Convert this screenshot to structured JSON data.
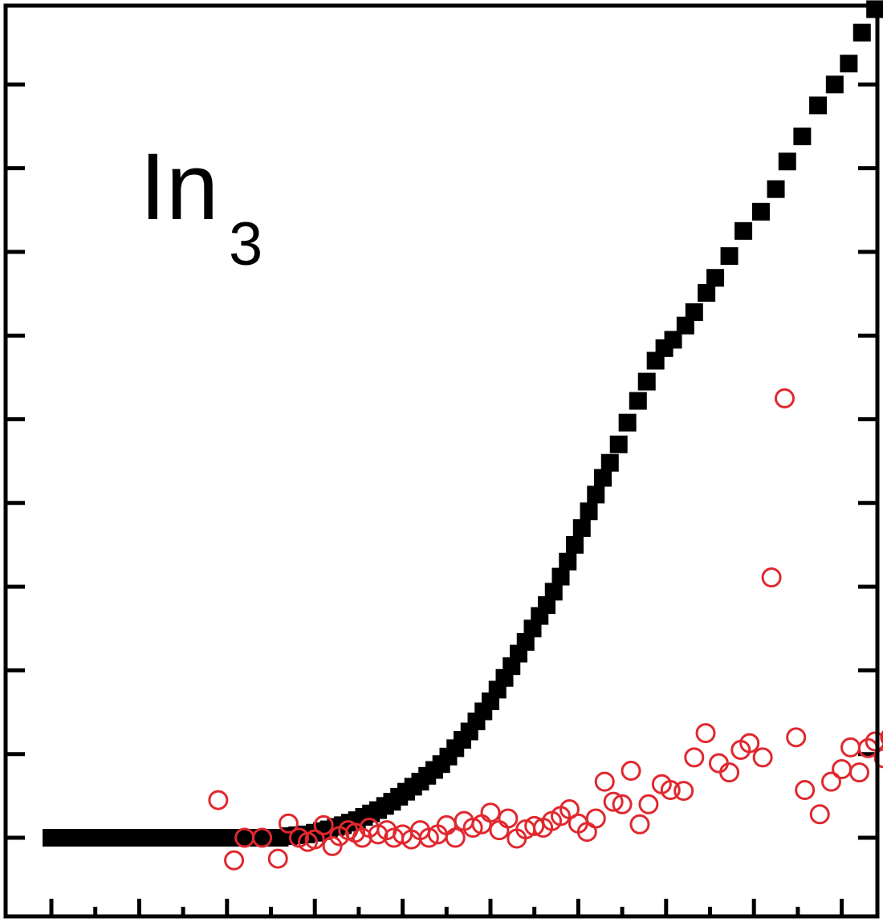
{
  "chart_data": {
    "type": "scatter",
    "title": "",
    "xlabel": "",
    "ylabel": "",
    "xlim": [
      0,
      10
    ],
    "ylim": [
      -0.2,
      10.0
    ],
    "x_major_ticks": [
      0,
      1,
      2,
      3,
      4,
      5,
      6,
      7,
      8,
      9
    ],
    "x_minor_ticks": [
      0.5,
      1.5,
      2.5,
      3.5,
      4.5,
      5.5,
      6.5,
      7.5,
      8.5,
      9.5
    ],
    "y_ticks": [
      0,
      1,
      2,
      3,
      4,
      5,
      6,
      7,
      8,
      9
    ],
    "grid": false,
    "annotation": {
      "text": "In",
      "subscript": "3"
    },
    "colors": {
      "squares": "#000000",
      "circles": "#e0282e"
    },
    "series": [
      {
        "marker": "filled-square",
        "color": "#000000",
        "x": [
          0.0,
          0.05,
          0.1,
          0.15,
          0.2,
          0.25,
          0.3,
          0.35,
          0.4,
          0.45,
          0.5,
          0.55,
          0.6,
          0.65,
          0.7,
          0.75,
          0.8,
          0.85,
          0.9,
          0.95,
          1.0,
          1.05,
          1.1,
          1.15,
          1.2,
          1.25,
          1.3,
          1.35,
          1.4,
          1.45,
          1.5,
          1.55,
          1.6,
          1.65,
          1.7,
          1.75,
          1.8,
          1.85,
          1.9,
          1.95,
          2.0,
          2.05,
          2.1,
          2.15,
          2.2,
          2.25,
          2.3,
          2.35,
          2.4,
          2.5,
          2.6,
          2.7,
          2.8,
          2.9,
          3.0,
          3.08,
          3.16,
          3.24,
          3.32,
          3.4,
          3.48,
          3.56,
          3.64,
          3.72,
          3.8,
          3.88,
          3.96,
          4.04,
          4.12,
          4.2,
          4.28,
          4.36,
          4.44,
          4.52,
          4.6,
          4.68,
          4.76,
          4.84,
          4.92,
          5.0,
          5.08,
          5.16,
          5.24,
          5.32,
          5.4,
          5.48,
          5.56,
          5.64,
          5.72,
          5.8,
          5.88,
          5.96,
          6.04,
          6.12,
          6.2,
          6.28,
          6.36,
          6.46,
          6.56,
          6.68,
          6.78,
          6.88,
          6.98,
          7.08,
          7.22,
          7.32,
          7.46,
          7.56,
          7.72,
          7.88,
          8.08,
          8.25,
          8.38,
          8.55,
          8.73,
          8.92,
          9.08,
          9.23,
          9.38
        ],
        "y": [
          0.0,
          0.0,
          0.0,
          0.0,
          0.0,
          0.0,
          0.0,
          0.0,
          0.0,
          0.0,
          0.0,
          0.0,
          0.0,
          0.0,
          0.0,
          0.0,
          0.0,
          0.0,
          0.0,
          0.0,
          0.0,
          0.0,
          0.0,
          0.0,
          0.0,
          0.0,
          0.0,
          0.0,
          0.0,
          0.0,
          0.0,
          0.0,
          0.0,
          0.0,
          0.0,
          0.0,
          0.0,
          0.0,
          0.0,
          0.0,
          0.0,
          0.0,
          0.0,
          0.0,
          0.0,
          0.0,
          0.0,
          0.0,
          0.0,
          0.0,
          0.0,
          0.02,
          0.03,
          0.04,
          0.06,
          0.08,
          0.1,
          0.13,
          0.15,
          0.18,
          0.21,
          0.25,
          0.29,
          0.33,
          0.38,
          0.43,
          0.49,
          0.55,
          0.61,
          0.67,
          0.74,
          0.81,
          0.88,
          0.97,
          1.07,
          1.17,
          1.27,
          1.39,
          1.51,
          1.63,
          1.77,
          1.91,
          2.05,
          2.2,
          2.34,
          2.5,
          2.65,
          2.78,
          2.94,
          3.12,
          3.3,
          3.5,
          3.7,
          3.9,
          4.1,
          4.3,
          4.48,
          4.7,
          4.96,
          5.22,
          5.45,
          5.7,
          5.85,
          5.95,
          6.12,
          6.28,
          6.51,
          6.69,
          6.95,
          7.25,
          7.48,
          7.75,
          8.08,
          8.38,
          8.75,
          9.0,
          9.25,
          9.62,
          9.9
        ]
      },
      {
        "marker": "open-circle",
        "color": "#e0282e",
        "x": [
          1.9,
          2.08,
          2.2,
          2.4,
          2.58,
          2.7,
          2.82,
          2.92,
          3.0,
          3.1,
          3.2,
          3.28,
          3.38,
          3.46,
          3.54,
          3.62,
          3.72,
          3.82,
          3.9,
          4.0,
          4.1,
          4.2,
          4.3,
          4.4,
          4.5,
          4.6,
          4.7,
          4.8,
          4.9,
          5.0,
          5.1,
          5.2,
          5.3,
          5.4,
          5.5,
          5.6,
          5.7,
          5.8,
          5.9,
          6.0,
          6.1,
          6.2,
          6.3,
          6.4,
          6.5,
          6.6,
          6.7,
          6.8,
          6.95,
          7.05,
          7.2,
          7.32,
          7.45,
          7.6,
          7.72,
          7.85,
          7.95,
          8.1,
          8.2,
          8.35,
          8.48,
          8.58,
          8.75,
          8.88,
          9.0,
          9.1,
          9.2,
          9.3,
          9.38,
          9.48,
          9.55
        ],
        "y": [
          0.45,
          -0.27,
          0.0,
          0.0,
          -0.25,
          0.17,
          0.0,
          -0.05,
          -0.02,
          0.15,
          -0.1,
          0.02,
          0.09,
          0.06,
          0.0,
          0.12,
          0.04,
          0.09,
          0.0,
          0.04,
          -0.02,
          0.09,
          0.0,
          0.04,
          0.15,
          0.0,
          0.2,
          0.12,
          0.16,
          0.3,
          0.09,
          0.23,
          -0.01,
          0.1,
          0.14,
          0.12,
          0.2,
          0.26,
          0.34,
          0.17,
          0.07,
          0.23,
          0.67,
          0.43,
          0.4,
          0.8,
          0.16,
          0.4,
          0.64,
          0.57,
          0.56,
          0.96,
          1.25,
          0.89,
          0.78,
          1.05,
          1.13,
          0.96,
          3.11,
          5.25,
          1.2,
          0.57,
          0.28,
          0.67,
          0.82,
          1.08,
          0.78,
          1.07,
          1.15,
          0.95,
          1.2
        ]
      }
    ]
  }
}
